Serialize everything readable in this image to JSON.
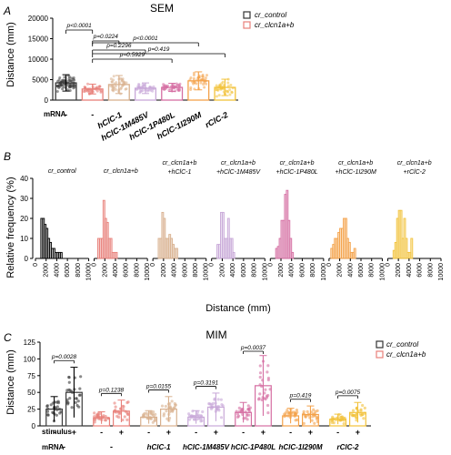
{
  "panels": {
    "A": {
      "letter": "A",
      "title": "SEM",
      "ylabel": "Distance (mm)",
      "yticks": [
        "0",
        "5000",
        "10000",
        "15000",
        "20000"
      ],
      "row_label": "mRNA",
      "groups": [
        "-",
        "-",
        "hClC-1",
        "hClC-1M485V",
        "hClC-1P480L",
        "hClC-1I290M",
        "rClC-2"
      ],
      "pvalues": [
        "p<0.0001",
        "p=0.0224",
        "p=0.2296",
        "p=0.5929",
        "p<0.0001",
        "p=0.419"
      ],
      "legend": [
        "cr_control",
        "cr_clcn1a+b"
      ]
    },
    "B": {
      "letter": "B",
      "ylabel": "Relative frequency (%)",
      "xlabel": "Distance (mm)",
      "yticks": [
        "0",
        "10",
        "20",
        "30",
        "40"
      ],
      "xticks": [
        "0",
        "2000",
        "4000",
        "6000",
        "8000",
        "10000"
      ],
      "groups": [
        {
          "line1": "cr_control",
          "line2": ""
        },
        {
          "line1": "cr_clcn1a+b",
          "line2": ""
        },
        {
          "line1": "cr_clcn1a+b",
          "line2": "+hClC-1"
        },
        {
          "line1": "cr_clcn1a+b",
          "line2": "+hClC-1M485V"
        },
        {
          "line1": "cr_clcn1a+b",
          "line2": "+hClC-1P480L"
        },
        {
          "line1": "cr_clcn1a+b",
          "line2": "+hClC-1I290M"
        },
        {
          "line1": "cr_clcn1a+b",
          "line2": "+rClC-2"
        }
      ]
    },
    "C": {
      "letter": "C",
      "title": "MIM",
      "ylabel": "Distance (mm)",
      "yticks": [
        "0",
        "25",
        "50",
        "75",
        "100",
        "125"
      ],
      "stimulus_label": "stimulus",
      "mrna_label": "mRNA",
      "stim_signs": [
        "-",
        "+"
      ],
      "groups": [
        "-",
        "-",
        "hClC-1",
        "hClC-1M485V",
        "hClC-1P480L",
        "hClC-1I290M",
        "rClC-2"
      ],
      "pvalues": [
        "p=0.0028",
        "p=0.1238",
        "p=0.0155",
        "p=0.3191",
        "p=0.0037",
        "p=0.419",
        "p=0.0075"
      ],
      "legend": [
        "cr_control",
        "cr_clcn1a+b"
      ]
    }
  },
  "colors": [
    "#3a3a3a",
    "#e8807a",
    "#d8b08e",
    "#c8a8d8",
    "#d56ea2",
    "#f4a24a",
    "#f2c23a"
  ],
  "chart_data": [
    {
      "type": "bar",
      "title": "SEM",
      "ylabel": "Distance (mm)",
      "ylim": [
        0,
        20000
      ],
      "categories": [
        "cr_control",
        "cr_clcn1a+b",
        "+hClC-1",
        "+hClC-1M485V",
        "+hClC-1P480L",
        "+hClC-1I290M",
        "+rClC-2"
      ],
      "values": [
        4200,
        2700,
        3800,
        2900,
        3100,
        4700,
        3100
      ],
      "sd": [
        2000,
        1200,
        2200,
        1300,
        1000,
        2200,
        2000
      ],
      "pvalues": [
        "p<0.0001",
        "p=0.0224",
        "p=0.2296",
        "p=0.5929",
        "p<0.0001",
        "p=0.419"
      ]
    },
    {
      "type": "bar",
      "ylabel": "Relative frequency (%)",
      "xlabel": "Distance (mm)",
      "ylim": [
        0,
        40
      ],
      "xlim": [
        0,
        10000
      ],
      "bin_width": 500,
      "series": [
        {
          "name": "cr_control",
          "values": [
            0,
            0,
            0,
            20,
            20,
            17,
            15,
            10,
            8,
            5,
            5,
            3,
            3,
            3,
            3
          ]
        },
        {
          "name": "cr_clcn1a+b",
          "values": [
            0,
            0,
            10,
            10,
            10,
            29,
            20,
            18,
            10,
            10,
            3,
            3,
            3,
            0,
            0
          ]
        },
        {
          "name": "cr_clcn1a+b +hClC-1",
          "values": [
            0,
            0,
            0,
            10,
            10,
            23,
            20,
            10,
            10,
            12,
            10,
            7,
            5,
            5,
            0
          ]
        },
        {
          "name": "cr_clcn1a+b +hClC-1M485V",
          "values": [
            0,
            0,
            0,
            7,
            7,
            23,
            23,
            10,
            10,
            20,
            10,
            10,
            3,
            0,
            0
          ]
        },
        {
          "name": "cr_clcn1a+b +hClC-1P480L",
          "values": [
            0,
            0,
            0,
            5,
            6,
            10,
            19,
            19,
            32,
            34,
            19,
            10,
            3,
            0,
            0
          ]
        },
        {
          "name": "cr_clcn1a+b +hClC-1I290M",
          "values": [
            0,
            5,
            7,
            10,
            10,
            13,
            15,
            15,
            20,
            20,
            10,
            8,
            3,
            3,
            5
          ]
        },
        {
          "name": "cr_clcn1a+b +rClC-2",
          "values": [
            0,
            0,
            0,
            4,
            8,
            20,
            24,
            24,
            10,
            20,
            10,
            3,
            3,
            10,
            0
          ]
        }
      ]
    },
    {
      "type": "bar",
      "title": "MIM",
      "ylabel": "Distance (mm)",
      "ylim": [
        0,
        125
      ],
      "categories": [
        "cr_control",
        "cr_clcn1a+b",
        "+hClC-1",
        "+hClC-1M485V",
        "+hClC-1P480L",
        "+hClC-1I290M",
        "+rClC-2"
      ],
      "series": [
        {
          "name": "stimulus -",
          "values": [
            25,
            12,
            13,
            13,
            20,
            15,
            10
          ]
        },
        {
          "name": "stimulus +",
          "values": [
            50,
            22,
            25,
            28,
            60,
            17,
            20
          ]
        }
      ],
      "pvalues": [
        "p=0.0028",
        "p=0.1238",
        "p=0.0155",
        "p=0.3191",
        "p=0.0037",
        "p=0.419",
        "p=0.0075"
      ]
    }
  ]
}
